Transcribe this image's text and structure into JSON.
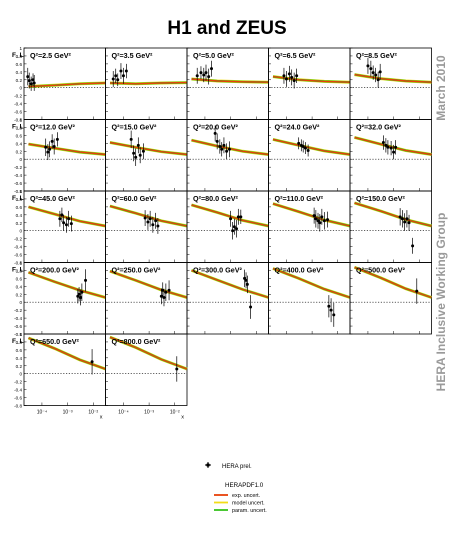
{
  "title": "H1 and ZEUS",
  "side_labels": [
    "March 2010",
    "HERA Inclusive Working Group"
  ],
  "colors": {
    "exp": "#e8400a",
    "model": "#f2dc18",
    "param": "#35c21e",
    "data": "#000000",
    "side_text": "#9a9a9a",
    "zero_line": "#000000"
  },
  "chart_data": {
    "type": "scatter",
    "ylabel": "F_L",
    "xlabel": "x",
    "x_scale": "log",
    "xlim": [
      2e-05,
      0.03
    ],
    "ylim": [
      -0.8,
      1.0
    ],
    "y_ticks": [
      "1",
      "0.8",
      "0.6",
      "0.4",
      "0.2",
      "0",
      "-0.2",
      "-0.4",
      "-0.6",
      "-0.8"
    ],
    "x_ticks": [
      "10⁻⁴",
      "10⁻³",
      "10⁻²"
    ],
    "reference_line": {
      "y": 0,
      "style": "dotted"
    },
    "panels": [
      {
        "q2": "Q²=2.5 GeV²",
        "curve": [
          [
            3e-05,
            0.03
          ],
          [
            0.0003,
            0.06
          ],
          [
            0.003,
            0.1
          ],
          [
            0.03,
            0.12
          ]
        ],
        "points": [
          [
            2.8e-05,
            0.28,
            0.22
          ],
          [
            3.2e-05,
            0.18,
            0.2
          ],
          [
            3.8e-05,
            0.1,
            0.18
          ],
          [
            4.5e-05,
            0.2,
            0.16
          ],
          [
            5e-05,
            0.12,
            0.2
          ]
        ]
      },
      {
        "q2": "Q²=3.5 GeV²",
        "curve": [
          [
            3e-05,
            0.12
          ],
          [
            0.0003,
            0.1
          ],
          [
            0.003,
            0.12
          ],
          [
            0.03,
            0.13
          ]
        ],
        "points": [
          [
            4e-05,
            0.22,
            0.2
          ],
          [
            5e-05,
            0.3,
            0.18
          ],
          [
            6e-05,
            0.2,
            0.16
          ],
          [
            8e-05,
            0.42,
            0.2
          ],
          [
            0.0001,
            0.3,
            0.2
          ],
          [
            0.00013,
            0.42,
            0.18
          ]
        ]
      },
      {
        "q2": "Q²=5.0 GeV²",
        "curve": [
          [
            3e-05,
            0.22
          ],
          [
            0.0003,
            0.17
          ],
          [
            0.003,
            0.15
          ],
          [
            0.03,
            0.14
          ]
        ],
        "points": [
          [
            5e-05,
            0.3,
            0.2
          ],
          [
            7e-05,
            0.38,
            0.16
          ],
          [
            9e-05,
            0.32,
            0.18
          ],
          [
            0.00011,
            0.38,
            0.2
          ],
          [
            0.00014,
            0.28,
            0.2
          ],
          [
            0.00018,
            0.48,
            0.2
          ]
        ]
      },
      {
        "q2": "Q²=6.5 GeV²",
        "curve": [
          [
            3e-05,
            0.28
          ],
          [
            0.0003,
            0.2
          ],
          [
            0.003,
            0.16
          ],
          [
            0.03,
            0.14
          ]
        ],
        "points": [
          [
            8e-05,
            0.3,
            0.2
          ],
          [
            0.0001,
            0.22,
            0.2
          ],
          [
            0.00013,
            0.35,
            0.2
          ],
          [
            0.00016,
            0.26,
            0.2
          ],
          [
            0.0002,
            0.18,
            0.2
          ],
          [
            0.00025,
            0.3,
            0.18
          ]
        ]
      },
      {
        "q2": "Q²=8.5 GeV²",
        "curve": [
          [
            3e-05,
            0.33
          ],
          [
            0.0003,
            0.23
          ],
          [
            0.003,
            0.17
          ],
          [
            0.03,
            0.14
          ]
        ],
        "points": [
          [
            0.0001,
            0.55,
            0.2
          ],
          [
            0.00013,
            0.48,
            0.2
          ],
          [
            0.00016,
            0.38,
            0.18
          ],
          [
            0.0002,
            0.32,
            0.18
          ],
          [
            0.00025,
            0.2,
            0.2
          ],
          [
            0.0003,
            0.4,
            0.2
          ]
        ]
      },
      {
        "q2": "Q²=12.0 GeV²",
        "curve": [
          [
            3e-05,
            0.38
          ],
          [
            0.0003,
            0.28
          ],
          [
            0.003,
            0.18
          ],
          [
            0.03,
            0.12
          ]
        ],
        "points": [
          [
            0.00014,
            0.3,
            0.22
          ],
          [
            0.00017,
            0.18,
            0.2
          ],
          [
            0.0002,
            0.25,
            0.2
          ],
          [
            0.00025,
            0.45,
            0.18
          ],
          [
            0.0003,
            0.32,
            0.2
          ],
          [
            0.0004,
            0.5,
            0.18
          ]
        ]
      },
      {
        "q2": "Q²=15.0 GeV²",
        "curve": [
          [
            3e-05,
            0.42
          ],
          [
            0.0003,
            0.3
          ],
          [
            0.003,
            0.19
          ],
          [
            0.03,
            0.12
          ]
        ],
        "points": [
          [
            0.0002,
            0.5,
            0.22
          ],
          [
            0.00025,
            0.15,
            0.2
          ],
          [
            0.0003,
            0.05,
            0.22
          ],
          [
            0.00038,
            0.35,
            0.2
          ],
          [
            0.00045,
            0.1,
            0.2
          ],
          [
            0.0006,
            0.2,
            0.2
          ]
        ]
      },
      {
        "q2": "Q²=20.0 GeV²",
        "curve": [
          [
            3e-05,
            0.48
          ],
          [
            0.0003,
            0.33
          ],
          [
            0.003,
            0.2
          ],
          [
            0.03,
            0.12
          ]
        ],
        "points": [
          [
            0.00025,
            0.65,
            0.2
          ],
          [
            0.0003,
            0.45,
            0.2
          ],
          [
            0.00038,
            0.32,
            0.18
          ],
          [
            0.00045,
            0.25,
            0.18
          ],
          [
            0.00055,
            0.35,
            0.2
          ],
          [
            0.0007,
            0.2,
            0.2
          ],
          [
            0.0009,
            0.25,
            0.2
          ]
        ]
      },
      {
        "q2": "Q²=24.0 GeV²",
        "curve": [
          [
            3e-05,
            0.5
          ],
          [
            0.0003,
            0.35
          ],
          [
            0.003,
            0.21
          ],
          [
            0.03,
            0.12
          ]
        ],
        "points": [
          [
            0.0003,
            0.4,
            0.15
          ],
          [
            0.00038,
            0.35,
            0.15
          ],
          [
            0.00045,
            0.32,
            0.15
          ],
          [
            0.00055,
            0.28,
            0.15
          ],
          [
            0.0007,
            0.22,
            0.15
          ]
        ]
      },
      {
        "q2": "Q²=32.0 GeV²",
        "curve": [
          [
            3e-05,
            0.55
          ],
          [
            0.0003,
            0.38
          ],
          [
            0.003,
            0.22
          ],
          [
            0.03,
            0.12
          ]
        ],
        "points": [
          [
            0.0004,
            0.42,
            0.18
          ],
          [
            0.0005,
            0.35,
            0.18
          ],
          [
            0.0006,
            0.3,
            0.18
          ],
          [
            0.0008,
            0.28,
            0.18
          ],
          [
            0.001,
            0.18,
            0.18
          ],
          [
            0.0012,
            0.3,
            0.18
          ]
        ]
      },
      {
        "q2": "Q²=45.0 GeV²",
        "curve": [
          [
            3e-05,
            0.6
          ],
          [
            0.0003,
            0.42
          ],
          [
            0.003,
            0.24
          ],
          [
            0.03,
            0.12
          ]
        ],
        "points": [
          [
            0.0005,
            0.3,
            0.2
          ],
          [
            0.0006,
            0.4,
            0.18
          ],
          [
            0.0007,
            0.2,
            0.2
          ],
          [
            0.0009,
            0.15,
            0.2
          ],
          [
            0.0011,
            0.3,
            0.2
          ],
          [
            0.0014,
            0.18,
            0.2
          ]
        ]
      },
      {
        "q2": "Q²=60.0 GeV²",
        "curve": [
          [
            3e-05,
            0.62
          ],
          [
            0.0003,
            0.44
          ],
          [
            0.003,
            0.25
          ],
          [
            0.03,
            0.12
          ]
        ],
        "points": [
          [
            0.0007,
            0.32,
            0.2
          ],
          [
            0.0009,
            0.22,
            0.2
          ],
          [
            0.0011,
            0.3,
            0.2
          ],
          [
            0.0014,
            0.15,
            0.2
          ],
          [
            0.0018,
            0.25,
            0.2
          ],
          [
            0.0022,
            0.12,
            0.2
          ]
        ]
      },
      {
        "q2": "Q²=80.0 GeV²",
        "curve": [
          [
            3e-05,
            0.65
          ],
          [
            0.0003,
            0.46
          ],
          [
            0.003,
            0.26
          ],
          [
            0.03,
            0.12
          ]
        ],
        "points": [
          [
            0.001,
            0.3,
            0.2
          ],
          [
            0.0012,
            0.0,
            0.22
          ],
          [
            0.0014,
            0.1,
            0.2
          ],
          [
            0.0017,
            0.05,
            0.22
          ],
          [
            0.002,
            0.35,
            0.2
          ],
          [
            0.0025,
            0.35,
            0.18
          ]
        ]
      },
      {
        "q2": "Q²=110.0 GeV²",
        "curve": [
          [
            3e-05,
            0.68
          ],
          [
            0.0003,
            0.48
          ],
          [
            0.003,
            0.27
          ],
          [
            0.03,
            0.12
          ]
        ],
        "points": [
          [
            0.0012,
            0.38,
            0.2
          ],
          [
            0.0014,
            0.3,
            0.22
          ],
          [
            0.0017,
            0.25,
            0.2
          ],
          [
            0.002,
            0.2,
            0.22
          ],
          [
            0.0024,
            0.35,
            0.2
          ],
          [
            0.003,
            0.25,
            0.22
          ],
          [
            0.004,
            0.28,
            0.2
          ]
        ]
      },
      {
        "q2": "Q²=150.0 GeV²",
        "curve": [
          [
            3e-05,
            0.7
          ],
          [
            0.0003,
            0.5
          ],
          [
            0.003,
            0.28
          ],
          [
            0.03,
            0.12
          ]
        ],
        "points": [
          [
            0.0018,
            0.35,
            0.22
          ],
          [
            0.0022,
            0.3,
            0.22
          ],
          [
            0.0027,
            0.22,
            0.22
          ],
          [
            0.0033,
            0.3,
            0.22
          ],
          [
            0.004,
            0.2,
            0.2
          ],
          [
            0.0055,
            -0.38,
            0.2
          ]
        ]
      },
      {
        "q2": "Q²=200.0 GeV²",
        "curve": [
          [
            3e-05,
            0.75
          ],
          [
            0.0003,
            0.52
          ],
          [
            0.003,
            0.3
          ],
          [
            0.03,
            0.12
          ]
        ],
        "points": [
          [
            0.0025,
            0.15,
            0.18
          ],
          [
            0.0028,
            0.2,
            0.18
          ],
          [
            0.0032,
            0.12,
            0.2
          ],
          [
            0.0036,
            0.25,
            0.22
          ],
          [
            0.005,
            0.55,
            0.28
          ]
        ]
      },
      {
        "q2": "Q²=250.0 GeV²",
        "curve": [
          [
            3e-05,
            0.78
          ],
          [
            0.0003,
            0.55
          ],
          [
            0.003,
            0.31
          ],
          [
            0.03,
            0.12
          ]
        ],
        "points": [
          [
            0.003,
            0.15,
            0.2
          ],
          [
            0.0034,
            0.3,
            0.2
          ],
          [
            0.0038,
            0.12,
            0.22
          ],
          [
            0.0045,
            0.25,
            0.22
          ],
          [
            0.006,
            0.3,
            0.25
          ]
        ]
      },
      {
        "q2": "Q²=300.0 GeV²",
        "curve": [
          [
            3e-05,
            0.8
          ],
          [
            0.0003,
            0.56
          ],
          [
            0.003,
            0.32
          ],
          [
            0.03,
            0.12
          ]
        ],
        "points": [
          [
            0.0035,
            0.6,
            0.22
          ],
          [
            0.004,
            0.55,
            0.2
          ],
          [
            0.0045,
            0.45,
            0.22
          ],
          [
            0.006,
            -0.12,
            0.3
          ]
        ]
      },
      {
        "q2": "Q²=400.0 GeV²",
        "curve": [
          [
            3e-05,
            0.85
          ],
          [
            0.0003,
            0.6
          ],
          [
            0.003,
            0.33
          ],
          [
            0.03,
            0.12
          ]
        ],
        "points": [
          [
            0.0045,
            -0.1,
            0.28
          ],
          [
            0.0055,
            -0.2,
            0.3
          ],
          [
            0.007,
            -0.32,
            0.3
          ]
        ]
      },
      {
        "q2": "Q²=500.0 GeV²",
        "curve": [
          [
            3e-05,
            0.88
          ],
          [
            0.0003,
            0.62
          ],
          [
            0.003,
            0.34
          ],
          [
            0.03,
            0.12
          ]
        ],
        "points": [
          [
            0.008,
            0.28,
            0.32
          ]
        ]
      },
      {
        "q2": "Q²=650.0 GeV²",
        "curve": [
          [
            3e-05,
            0.9
          ],
          [
            0.0003,
            0.64
          ],
          [
            0.003,
            0.35
          ],
          [
            0.03,
            0.12
          ]
        ],
        "points": [
          [
            0.009,
            0.3,
            0.32
          ]
        ]
      },
      {
        "q2": "Q²=800.0 GeV²",
        "curve": [
          [
            3e-05,
            0.92
          ],
          [
            0.0003,
            0.66
          ],
          [
            0.003,
            0.36
          ],
          [
            0.03,
            0.12
          ]
        ],
        "points": [
          [
            0.012,
            0.12,
            0.32
          ]
        ]
      }
    ]
  },
  "legend": {
    "data_label": "HERA prel.",
    "fit_title": "HERAPDF1.0",
    "entries": [
      {
        "label": "exp. uncert.",
        "color": "#e8400a"
      },
      {
        "label": "model uncert.",
        "color": "#f2dc18"
      },
      {
        "label": "param. uncert.",
        "color": "#35c21e"
      }
    ]
  }
}
